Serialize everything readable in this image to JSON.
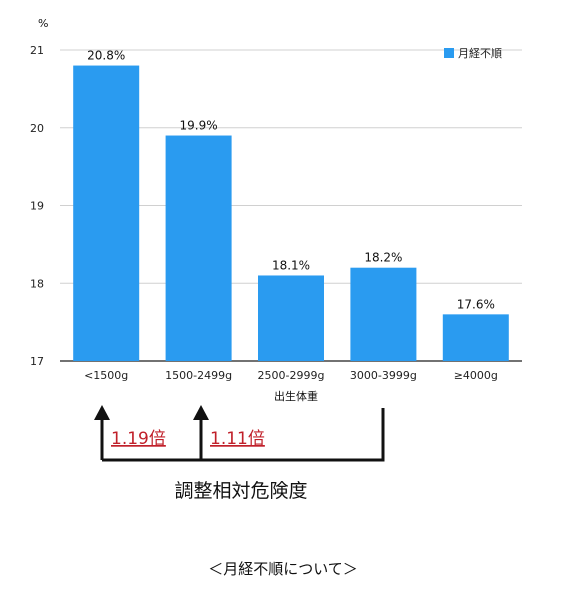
{
  "chart_data": {
    "type": "bar",
    "ylabel": "%",
    "xlabel": "出生体重",
    "ylim": [
      17,
      21
    ],
    "yticks": [
      17,
      18,
      19,
      20,
      21
    ],
    "grid": true,
    "legend_position": "top-right",
    "categories": [
      "<1500g",
      "1500-2499g",
      "2500-2999g",
      "3000-3999g",
      "≥4000g"
    ],
    "series": [
      {
        "name": "月経不順",
        "values": [
          20.8,
          19.9,
          18.1,
          18.2,
          17.6
        ],
        "labels": [
          "20.8%",
          "19.9%",
          "18.1%",
          "18.2%",
          "17.6%"
        ]
      }
    ],
    "colors": {
      "bar": "#2a9bf0",
      "ratio_text": "#c0202a",
      "arrow": "#111111"
    }
  },
  "annotations": {
    "ratio_1": "1.19倍",
    "ratio_2": "1.11倍",
    "bracket_caption": "調整相対危険度"
  },
  "footer": "＜月経不順について＞"
}
